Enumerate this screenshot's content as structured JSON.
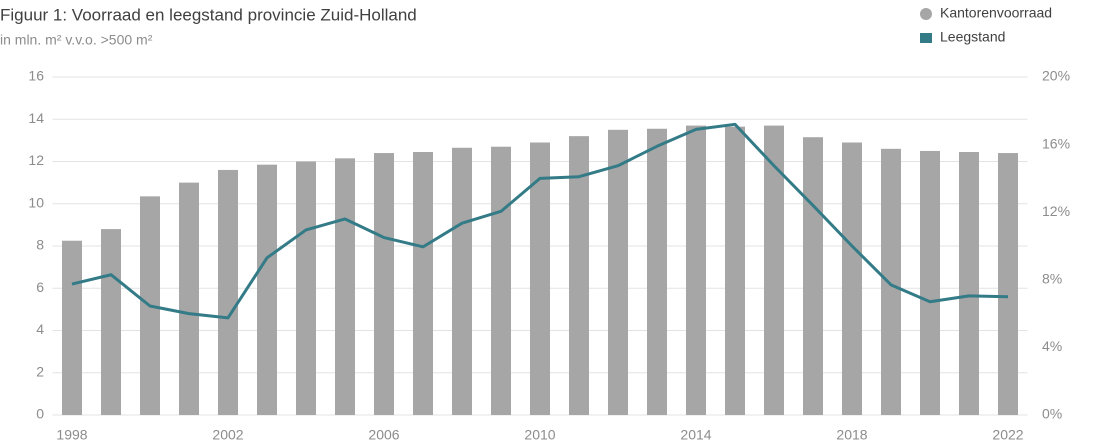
{
  "chart_data": {
    "type": "bar-line",
    "title": "Figuur 1: Voorraad en leegstand provincie Zuid-Holland",
    "subtitle": "in mln. m² v.v.o. >500 m²",
    "categories": [
      "1998",
      null,
      null,
      null,
      "2002",
      null,
      null,
      null,
      "2006",
      null,
      null,
      null,
      "2010",
      null,
      null,
      null,
      "2014",
      null,
      null,
      null,
      "2018",
      null,
      null,
      null,
      "2022"
    ],
    "series": [
      {
        "name": "Kantorenvoorraad",
        "type": "bar",
        "color": "#a6a6a6",
        "values": [
          8.25,
          8.8,
          10.35,
          11.0,
          11.6,
          11.85,
          12.0,
          12.15,
          12.4,
          12.45,
          12.65,
          12.7,
          12.9,
          13.2,
          13.5,
          13.55,
          13.7,
          13.65,
          13.7,
          13.15,
          12.9,
          12.6,
          12.5,
          12.45,
          12.4
        ]
      },
      {
        "name": "Leegstand",
        "type": "line",
        "axis": "y2",
        "color": "#337b87",
        "values": [
          7.75,
          8.3,
          6.45,
          6.0,
          5.75,
          9.3,
          10.95,
          11.6,
          10.5,
          9.95,
          11.35,
          12.05,
          14.0,
          14.1,
          14.75,
          15.9,
          16.9,
          17.2,
          14.75,
          12.4,
          10.0,
          7.7,
          6.7,
          7.05,
          7.0
        ]
      }
    ],
    "ylim": [
      0,
      16
    ],
    "yticks": [
      0,
      2,
      4,
      6,
      8,
      10,
      12,
      14,
      16
    ],
    "y2lim": [
      0,
      20
    ],
    "y2ticks": [
      {
        "value": 0,
        "label": "0%"
      },
      {
        "value": 4,
        "label": "4%"
      },
      {
        "value": 8,
        "label": "8%"
      },
      {
        "value": 12,
        "label": "12%"
      },
      {
        "value": 16,
        "label": "16%"
      },
      {
        "value": 20,
        "label": "20%"
      }
    ],
    "grid": true,
    "legend": "top-right"
  }
}
